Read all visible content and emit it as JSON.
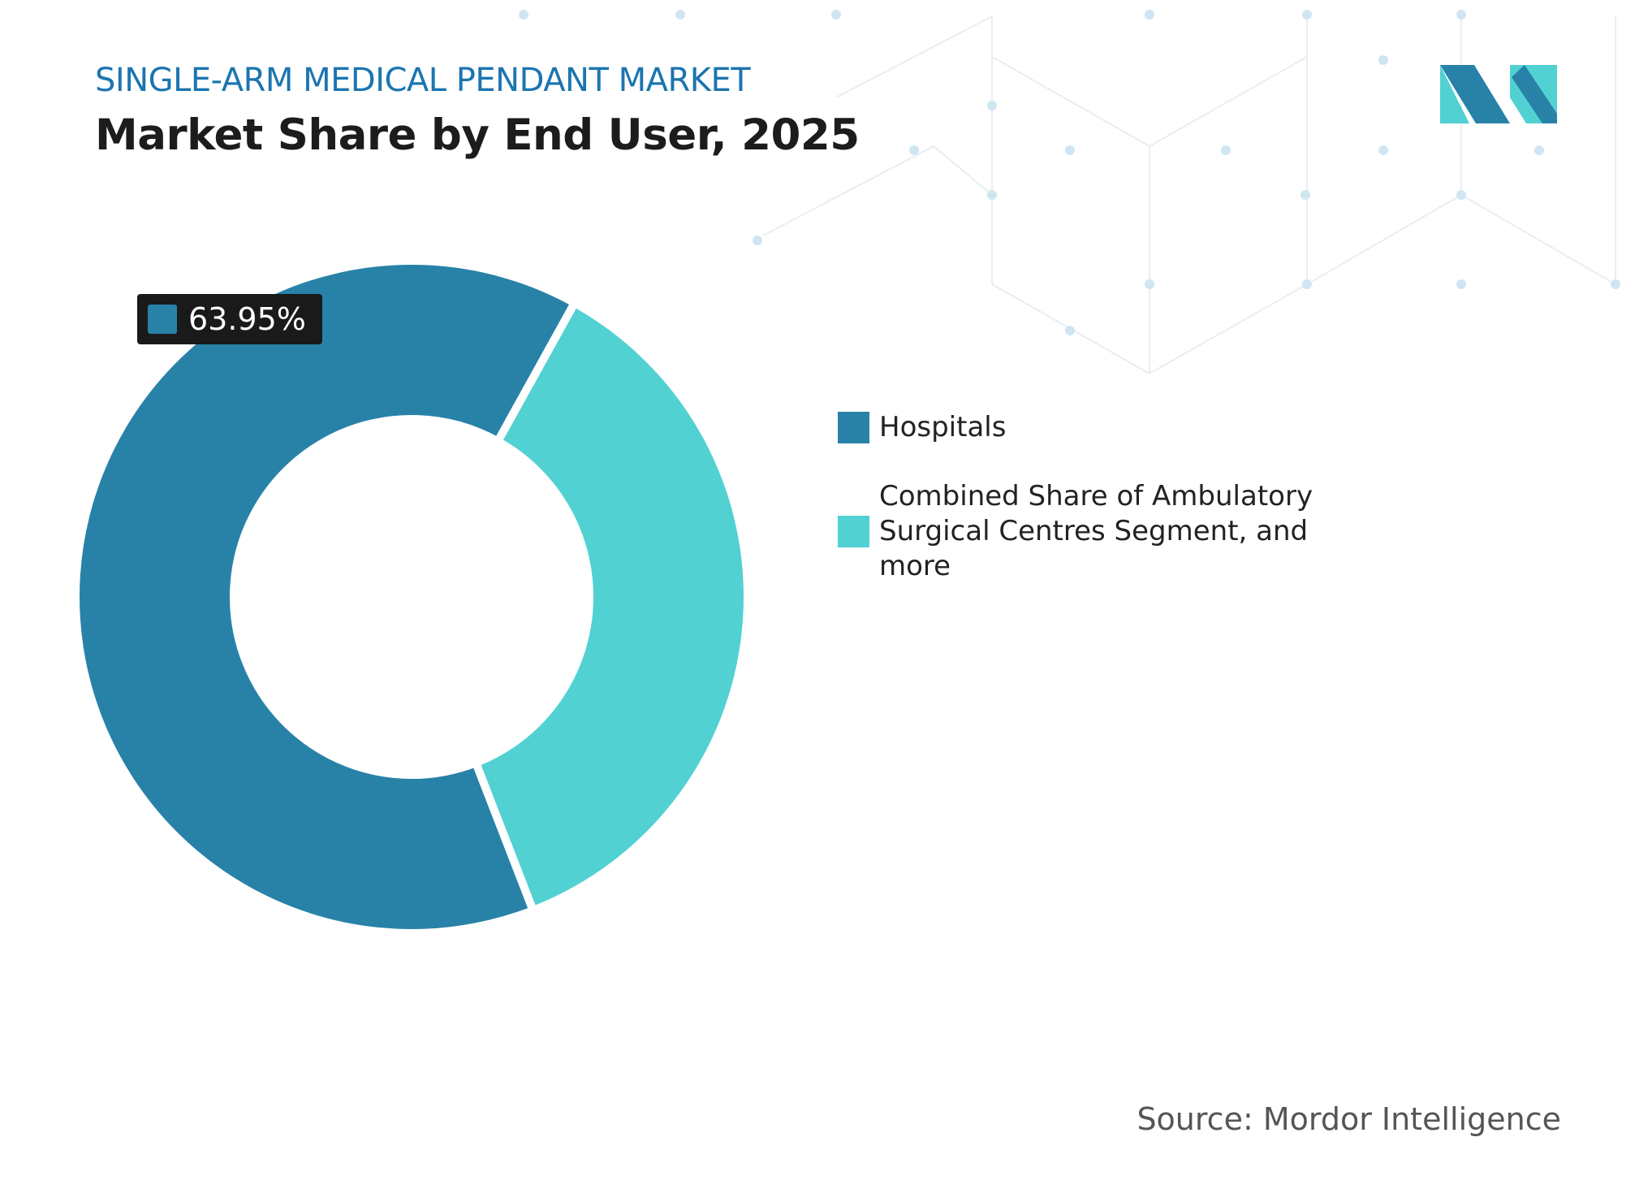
{
  "chart_data": {
    "type": "donut",
    "title": "SINGLE-ARM MEDICAL PENDANT MARKET",
    "subtitle": "Market Share by End User, 2025",
    "categories": [
      "Hospitals",
      "Combined Share of Ambulatory Surgical Centres Segment, and more"
    ],
    "values": [
      63.95,
      36.05
    ],
    "value_labels": [
      "63.95%",
      null
    ],
    "colors": [
      "#2882a8",
      "#52d1d3"
    ],
    "source": "Source: Mordor Intelligence"
  }
}
